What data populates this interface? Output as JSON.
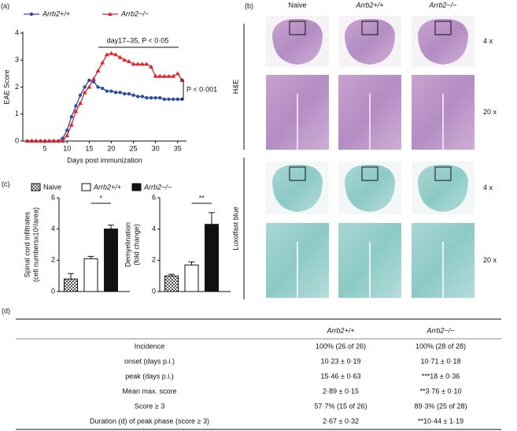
{
  "panel_labels": [
    "(a)",
    "(b)",
    "(c)",
    "(d)"
  ],
  "chart_data": [
    {
      "type": "line",
      "ylabel": "EAE Score",
      "xlabel": "Days post immunization",
      "x": [
        1,
        2,
        3,
        4,
        5,
        6,
        7,
        8,
        9,
        10,
        11,
        12,
        13,
        14,
        15,
        16,
        17,
        18,
        19,
        20,
        21,
        22,
        23,
        24,
        25,
        26,
        27,
        28,
        29,
        30,
        31,
        32,
        33,
        34,
        35,
        36
      ],
      "xlim": [
        0,
        37
      ],
      "xticks": [
        5,
        10,
        15,
        20,
        25,
        30,
        35
      ],
      "ylim": [
        0,
        4
      ],
      "yticks": [
        0,
        1,
        2,
        3,
        4
      ],
      "series": [
        {
          "name": "Arrb2+/+",
          "color": "#2b4fa0",
          "marker": "circle",
          "values": [
            0,
            0,
            0,
            0,
            0,
            0,
            0,
            0,
            0.1,
            0.4,
            0.9,
            1.3,
            1.7,
            2.0,
            2.25,
            2.2,
            2.0,
            1.95,
            1.85,
            1.85,
            1.8,
            1.8,
            1.75,
            1.75,
            1.7,
            1.65,
            1.65,
            1.6,
            1.6,
            1.6,
            1.6,
            1.55,
            1.55,
            1.55,
            1.55,
            1.55
          ]
        },
        {
          "name": "Arrb2−/−",
          "color": "#e0242c",
          "marker": "triangle",
          "values": [
            0,
            0,
            0,
            0,
            0,
            0,
            0,
            0,
            0,
            0.2,
            0.6,
            1.1,
            1.4,
            1.8,
            2.0,
            2.3,
            2.6,
            2.9,
            3.2,
            3.25,
            3.2,
            3.1,
            3.0,
            2.95,
            2.85,
            2.85,
            2.85,
            2.85,
            2.75,
            2.4,
            2.4,
            2.4,
            2.4,
            2.4,
            2.5,
            2.25
          ]
        }
      ],
      "annotations": [
        "day17–35, P < 0·05",
        "P < 0·001"
      ]
    },
    {
      "type": "bar",
      "ylabel": [
        "Spinal cord infiltrates",
        "(cell numbersx10²/area)"
      ],
      "categories": [
        null,
        null,
        null
      ],
      "values": [
        0.8,
        2.1,
        4.0
      ],
      "errors": [
        0.35,
        0.15,
        0.25
      ],
      "ylim": [
        0,
        6
      ],
      "yticks": [
        0,
        2,
        4,
        6
      ],
      "significance": "*",
      "legend": [
        "Naive",
        "Arrb2+/+",
        "Arrb2−/−"
      ],
      "fills": [
        "checker",
        "#ffffff",
        "#111111"
      ]
    },
    {
      "type": "bar",
      "ylabel": [
        "Demyelination",
        "(fold change)"
      ],
      "categories": [
        null,
        null,
        null
      ],
      "values": [
        1.0,
        1.7,
        4.3
      ],
      "errors": [
        0.1,
        0.2,
        0.75
      ],
      "ylim": [
        0,
        6
      ],
      "yticks": [
        0,
        2,
        4,
        6
      ],
      "significance": "**",
      "fills": [
        "checker",
        "#ffffff",
        "#111111"
      ]
    }
  ],
  "images": {
    "columns": [
      "Naive",
      "Arrb2+/+",
      "Arrb2−/−"
    ],
    "stains": [
      "H&E",
      "Luxolfast blue"
    ],
    "magnifications": [
      "4 x",
      "20 x",
      "4 x",
      "20 x"
    ]
  },
  "table": {
    "header": [
      "Arrb2+/+",
      "Arrb2−/−"
    ],
    "rows": [
      [
        "Incidence",
        "100% (26 of 26)",
        "100% (28 of 28)"
      ],
      [
        "onset (days p.i.)",
        "10·23 ± 0·19",
        "10·71 ± 0·18"
      ],
      [
        "peak (days p.i.)",
        "15·46 ± 0·63",
        "***18 ± 0·36"
      ],
      [
        "Mean max. score",
        "2·89 ± 0·15",
        "**3·76 ± 0·10"
      ],
      [
        "Score ≥ 3",
        "57·7% (15 of 26)",
        "89·3% (25 of 28)"
      ],
      [
        "Duration (d) of peak phase (score ≥ 3)",
        "2·67 ± 0·32",
        "**10·44 ± 1·19"
      ]
    ]
  }
}
